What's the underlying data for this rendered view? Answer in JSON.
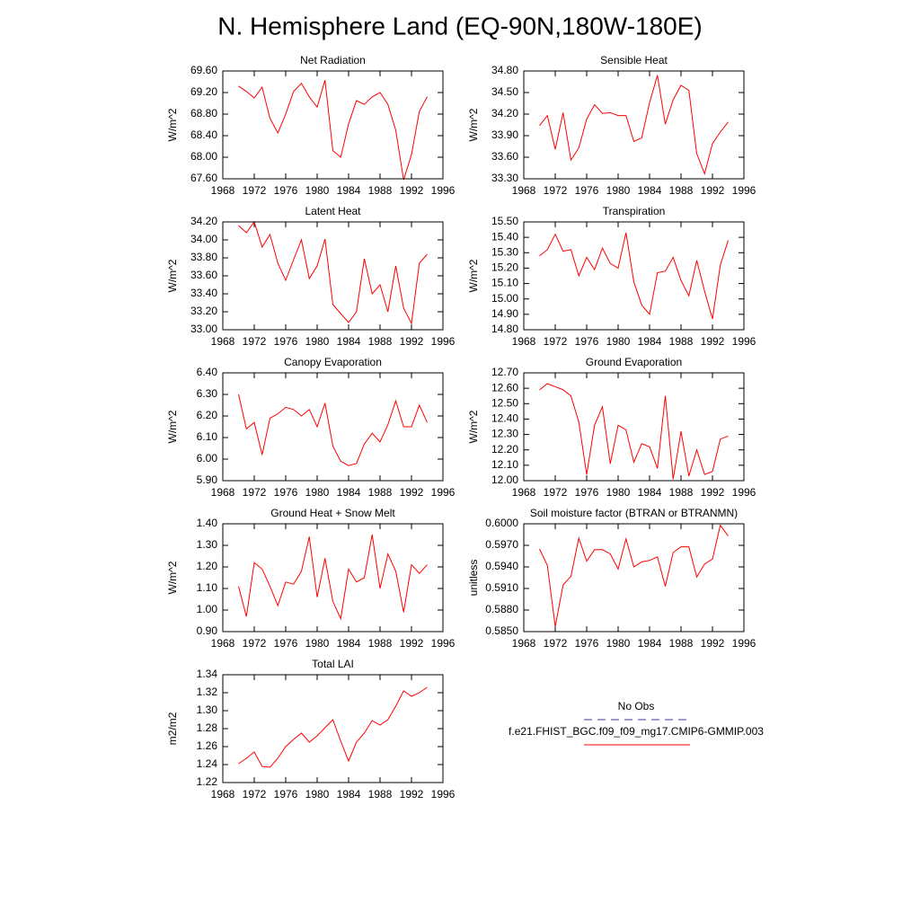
{
  "title": "N. Hemisphere Land (EQ-90N,180W-180E)",
  "legend": [
    {
      "name": "No Obs",
      "color": "#3a3aa0",
      "dashed": true
    },
    {
      "name": "f.e21.FHIST_BGC.f09_f09_mg17.CMIP6-GMMIP.003",
      "color": "#ff0000",
      "dashed": false
    }
  ],
  "chart_data": [
    {
      "type": "line",
      "title": "Net Radiation",
      "y_label": "W/m^2",
      "color": "#ff0000",
      "x": [
        1970,
        1971,
        1972,
        1973,
        1974,
        1975,
        1976,
        1977,
        1978,
        1979,
        1980,
        1981,
        1982,
        1983,
        1984,
        1985,
        1986,
        1987,
        1988,
        1989,
        1990,
        1991,
        1992,
        1993,
        1994
      ],
      "values": [
        69.32,
        69.22,
        69.1,
        69.3,
        68.72,
        68.45,
        68.8,
        69.22,
        69.37,
        69.12,
        68.93,
        69.43,
        68.12,
        68.0,
        68.62,
        69.05,
        68.98,
        69.12,
        69.2,
        68.98,
        68.5,
        67.58,
        68.05,
        68.85,
        69.12
      ],
      "xlim": [
        1968,
        1996
      ],
      "xticks": [
        1968,
        1972,
        1976,
        1980,
        1984,
        1988,
        1992,
        1996
      ],
      "ylim": [
        67.6,
        69.6
      ],
      "yticks": [
        {
          "value": 67.6,
          "label": "67.60"
        },
        {
          "value": 68.0,
          "label": "68.00"
        },
        {
          "value": 68.4,
          "label": "68.40"
        },
        {
          "value": 68.8,
          "label": "68.80"
        },
        {
          "value": 69.2,
          "label": "69.20"
        },
        {
          "value": 69.6,
          "label": "69.60"
        }
      ]
    },
    {
      "type": "line",
      "title": "Sensible Heat",
      "y_label": "W/m^2",
      "color": "#ff0000",
      "x": [
        1970,
        1971,
        1972,
        1973,
        1974,
        1975,
        1976,
        1977,
        1978,
        1979,
        1980,
        1981,
        1982,
        1983,
        1984,
        1985,
        1986,
        1987,
        1988,
        1989,
        1990,
        1991,
        1992,
        1993,
        1994
      ],
      "values": [
        34.04,
        34.18,
        33.71,
        34.22,
        33.56,
        33.73,
        34.13,
        34.33,
        34.21,
        34.22,
        34.18,
        34.18,
        33.82,
        33.87,
        34.36,
        34.74,
        34.06,
        34.4,
        34.6,
        34.53,
        33.65,
        33.37,
        33.79,
        33.95,
        34.09
      ],
      "xlim": [
        1968,
        1996
      ],
      "xticks": [
        1968,
        1972,
        1976,
        1980,
        1984,
        1988,
        1992,
        1996
      ],
      "ylim": [
        33.3,
        34.8
      ],
      "yticks": [
        {
          "value": 33.3,
          "label": "33.30"
        },
        {
          "value": 33.6,
          "label": "33.60"
        },
        {
          "value": 33.9,
          "label": "33.90"
        },
        {
          "value": 34.2,
          "label": "34.20"
        },
        {
          "value": 34.5,
          "label": "34.50"
        },
        {
          "value": 34.8,
          "label": "34.80"
        }
      ]
    },
    {
      "type": "line",
      "title": "Latent Heat",
      "y_label": "W/m^2",
      "color": "#ff0000",
      "x": [
        1970,
        1971,
        1972,
        1973,
        1974,
        1975,
        1976,
        1977,
        1978,
        1979,
        1980,
        1981,
        1982,
        1983,
        1984,
        1985,
        1986,
        1987,
        1988,
        1989,
        1990,
        1991,
        1992,
        1993,
        1994
      ],
      "values": [
        34.16,
        34.08,
        34.2,
        33.92,
        34.06,
        33.74,
        33.55,
        33.78,
        34.0,
        33.57,
        33.71,
        34.01,
        33.28,
        33.18,
        33.08,
        33.2,
        33.79,
        33.4,
        33.5,
        33.2,
        33.71,
        33.24,
        33.07,
        33.74,
        33.84
      ],
      "xlim": [
        1968,
        1996
      ],
      "xticks": [
        1968,
        1972,
        1976,
        1980,
        1984,
        1988,
        1992,
        1996
      ],
      "ylim": [
        33.0,
        34.2
      ],
      "yticks": [
        {
          "value": 33.0,
          "label": "33.00"
        },
        {
          "value": 33.2,
          "label": "33.20"
        },
        {
          "value": 33.4,
          "label": "33.40"
        },
        {
          "value": 33.6,
          "label": "33.60"
        },
        {
          "value": 33.8,
          "label": "33.80"
        },
        {
          "value": 34.0,
          "label": "34.00"
        },
        {
          "value": 34.2,
          "label": "34.20"
        }
      ]
    },
    {
      "type": "line",
      "title": "Transpiration",
      "y_label": "W/m^2",
      "color": "#ff0000",
      "x": [
        1970,
        1971,
        1972,
        1973,
        1974,
        1975,
        1976,
        1977,
        1978,
        1979,
        1980,
        1981,
        1982,
        1983,
        1984,
        1985,
        1986,
        1987,
        1988,
        1989,
        1990,
        1991,
        1992,
        1993,
        1994
      ],
      "values": [
        15.28,
        15.32,
        15.42,
        15.31,
        15.32,
        15.15,
        15.27,
        15.19,
        15.33,
        15.23,
        15.2,
        15.43,
        15.11,
        14.96,
        14.9,
        15.17,
        15.18,
        15.27,
        15.12,
        15.02,
        15.25,
        15.05,
        14.87,
        15.22,
        15.38
      ],
      "xlim": [
        1968,
        1996
      ],
      "xticks": [
        1968,
        1972,
        1976,
        1980,
        1984,
        1988,
        1992,
        1996
      ],
      "ylim": [
        14.8,
        15.5
      ],
      "yticks": [
        {
          "value": 14.8,
          "label": "14.80"
        },
        {
          "value": 14.9,
          "label": "14.90"
        },
        {
          "value": 15.0,
          "label": "15.00"
        },
        {
          "value": 15.1,
          "label": "15.10"
        },
        {
          "value": 15.2,
          "label": "15.20"
        },
        {
          "value": 15.3,
          "label": "15.30"
        },
        {
          "value": 15.4,
          "label": "15.40"
        },
        {
          "value": 15.5,
          "label": "15.50"
        }
      ]
    },
    {
      "type": "line",
      "title": "Canopy Evaporation",
      "y_label": "W/m^2",
      "color": "#ff0000",
      "x": [
        1970,
        1971,
        1972,
        1973,
        1974,
        1975,
        1976,
        1977,
        1978,
        1979,
        1980,
        1981,
        1982,
        1983,
        1984,
        1985,
        1986,
        1987,
        1988,
        1989,
        1990,
        1991,
        1992,
        1993,
        1994
      ],
      "values": [
        6.3,
        6.14,
        6.17,
        6.02,
        6.19,
        6.21,
        6.24,
        6.23,
        6.2,
        6.23,
        6.15,
        6.26,
        6.06,
        5.99,
        5.97,
        5.98,
        6.07,
        6.12,
        6.08,
        6.16,
        6.27,
        6.15,
        6.15,
        6.25,
        6.17
      ],
      "xlim": [
        1968,
        1996
      ],
      "xticks": [
        1968,
        1972,
        1976,
        1980,
        1984,
        1988,
        1992,
        1996
      ],
      "ylim": [
        5.9,
        6.4
      ],
      "yticks": [
        {
          "value": 5.9,
          "label": "5.90"
        },
        {
          "value": 6.0,
          "label": "6.00"
        },
        {
          "value": 6.1,
          "label": "6.10"
        },
        {
          "value": 6.2,
          "label": "6.20"
        },
        {
          "value": 6.3,
          "label": "6.30"
        },
        {
          "value": 6.4,
          "label": "6.40"
        }
      ]
    },
    {
      "type": "line",
      "title": "Ground Evaporation",
      "y_label": "W/m^2",
      "color": "#ff0000",
      "x": [
        1970,
        1971,
        1972,
        1973,
        1974,
        1975,
        1976,
        1977,
        1978,
        1979,
        1980,
        1981,
        1982,
        1983,
        1984,
        1985,
        1986,
        1987,
        1988,
        1989,
        1990,
        1991,
        1992,
        1993,
        1994
      ],
      "values": [
        12.59,
        12.63,
        12.61,
        12.59,
        12.55,
        12.38,
        12.04,
        12.36,
        12.48,
        12.11,
        12.36,
        12.33,
        12.12,
        12.24,
        12.22,
        12.08,
        12.55,
        12.01,
        12.32,
        12.03,
        12.2,
        12.04,
        12.06,
        12.27,
        12.29
      ],
      "xlim": [
        1968,
        1996
      ],
      "xticks": [
        1968,
        1972,
        1976,
        1980,
        1984,
        1988,
        1992,
        1996
      ],
      "ylim": [
        12.0,
        12.7
      ],
      "yticks": [
        {
          "value": 12.0,
          "label": "12.00"
        },
        {
          "value": 12.1,
          "label": "12.10"
        },
        {
          "value": 12.2,
          "label": "12.20"
        },
        {
          "value": 12.3,
          "label": "12.30"
        },
        {
          "value": 12.4,
          "label": "12.40"
        },
        {
          "value": 12.5,
          "label": "12.50"
        },
        {
          "value": 12.6,
          "label": "12.60"
        },
        {
          "value": 12.7,
          "label": "12.70"
        }
      ]
    },
    {
      "type": "line",
      "title": "Ground Heat + Snow Melt",
      "y_label": "W/m^2",
      "color": "#ff0000",
      "x": [
        1970,
        1971,
        1972,
        1973,
        1974,
        1975,
        1976,
        1977,
        1978,
        1979,
        1980,
        1981,
        1982,
        1983,
        1984,
        1985,
        1986,
        1987,
        1988,
        1989,
        1990,
        1991,
        1992,
        1993,
        1994
      ],
      "values": [
        1.11,
        0.97,
        1.22,
        1.19,
        1.11,
        1.02,
        1.13,
        1.12,
        1.18,
        1.34,
        1.06,
        1.24,
        1.04,
        0.96,
        1.19,
        1.13,
        1.15,
        1.35,
        1.1,
        1.26,
        1.18,
        0.99,
        1.21,
        1.17,
        1.21
      ],
      "xlim": [
        1968,
        1996
      ],
      "xticks": [
        1968,
        1972,
        1976,
        1980,
        1984,
        1988,
        1992,
        1996
      ],
      "ylim": [
        0.9,
        1.4
      ],
      "yticks": [
        {
          "value": 0.9,
          "label": "0.90"
        },
        {
          "value": 1.0,
          "label": "1.00"
        },
        {
          "value": 1.1,
          "label": "1.10"
        },
        {
          "value": 1.2,
          "label": "1.20"
        },
        {
          "value": 1.3,
          "label": "1.30"
        },
        {
          "value": 1.4,
          "label": "1.40"
        }
      ]
    },
    {
      "type": "line",
      "title": "Soil moisture factor (BTRAN or BTRANMN)",
      "y_label": "unitless",
      "color": "#ff0000",
      "x": [
        1970,
        1971,
        1972,
        1973,
        1974,
        1975,
        1976,
        1977,
        1978,
        1979,
        1980,
        1981,
        1982,
        1983,
        1984,
        1985,
        1986,
        1987,
        1988,
        1989,
        1990,
        1991,
        1992,
        1993,
        1994
      ],
      "values": [
        0.5965,
        0.5942,
        0.5857,
        0.5915,
        0.5927,
        0.598,
        0.5948,
        0.5964,
        0.5964,
        0.5958,
        0.5937,
        0.5979,
        0.594,
        0.5947,
        0.5949,
        0.5954,
        0.5913,
        0.596,
        0.5968,
        0.5968,
        0.5926,
        0.5944,
        0.5951,
        0.5998,
        0.5983
      ],
      "xlim": [
        1968,
        1996
      ],
      "xticks": [
        1968,
        1972,
        1976,
        1980,
        1984,
        1988,
        1992,
        1996
      ],
      "ylim": [
        0.585,
        0.6
      ],
      "yticks": [
        {
          "value": 0.585,
          "label": "0.5850"
        },
        {
          "value": 0.588,
          "label": "0.5880"
        },
        {
          "value": 0.591,
          "label": "0.5910"
        },
        {
          "value": 0.594,
          "label": "0.5940"
        },
        {
          "value": 0.597,
          "label": "0.5970"
        },
        {
          "value": 0.6,
          "label": "0.6000"
        }
      ]
    },
    {
      "type": "line",
      "title": "Total LAI",
      "y_label": "m2/m2",
      "color": "#ff0000",
      "x": [
        1970,
        1971,
        1972,
        1973,
        1974,
        1975,
        1976,
        1977,
        1978,
        1979,
        1980,
        1981,
        1982,
        1983,
        1984,
        1985,
        1986,
        1987,
        1988,
        1989,
        1990,
        1991,
        1992,
        1993,
        1994
      ],
      "values": [
        1.241,
        1.247,
        1.254,
        1.238,
        1.237,
        1.247,
        1.26,
        1.268,
        1.275,
        1.265,
        1.272,
        1.281,
        1.29,
        1.266,
        1.244,
        1.265,
        1.275,
        1.289,
        1.284,
        1.29,
        1.305,
        1.322,
        1.316,
        1.32,
        1.326
      ],
      "xlim": [
        1968,
        1996
      ],
      "xticks": [
        1968,
        1972,
        1976,
        1980,
        1984,
        1988,
        1992,
        1996
      ],
      "ylim": [
        1.22,
        1.34
      ],
      "yticks": [
        {
          "value": 1.22,
          "label": "1.22"
        },
        {
          "value": 1.24,
          "label": "1.24"
        },
        {
          "value": 1.26,
          "label": "1.26"
        },
        {
          "value": 1.28,
          "label": "1.28"
        },
        {
          "value": 1.3,
          "label": "1.30"
        },
        {
          "value": 1.32,
          "label": "1.32"
        },
        {
          "value": 1.34,
          "label": "1.34"
        }
      ]
    }
  ]
}
